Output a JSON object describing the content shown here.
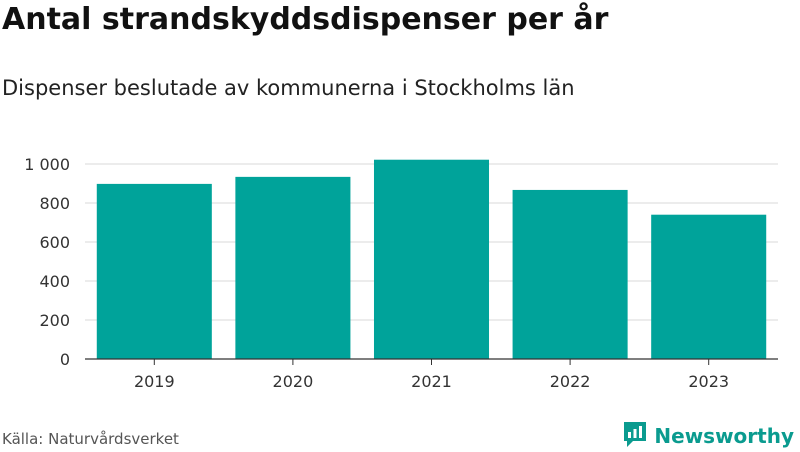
{
  "title": "Antal strandskyddsdispenser per år",
  "subtitle": "Dispenser beslutade av kommunerna i Stockholms län",
  "source": "Källa: Naturvårdsverket",
  "brand": {
    "name": "Newsworthy",
    "icon": "newsworthy-logo-icon",
    "color": "#0a9b8f"
  },
  "colors": {
    "bar": "#00a39a",
    "grid": "#d9d9d9",
    "axis": "#333333"
  },
  "chart_data": {
    "type": "bar",
    "title": "Antal strandskyddsdispenser per år",
    "subtitle": "Dispenser beslutade av kommunerna i Stockholms län",
    "xlabel": "",
    "ylabel": "",
    "categories": [
      "2019",
      "2020",
      "2021",
      "2022",
      "2023"
    ],
    "values": [
      898,
      934,
      1022,
      867,
      740
    ],
    "ylim": [
      0,
      1000
    ],
    "yticks": [
      0,
      200,
      400,
      600,
      800,
      1000
    ],
    "ytick_labels": [
      "0",
      "200",
      "400",
      "600",
      "800",
      "1 000"
    ],
    "grid": true,
    "legend": "none"
  }
}
